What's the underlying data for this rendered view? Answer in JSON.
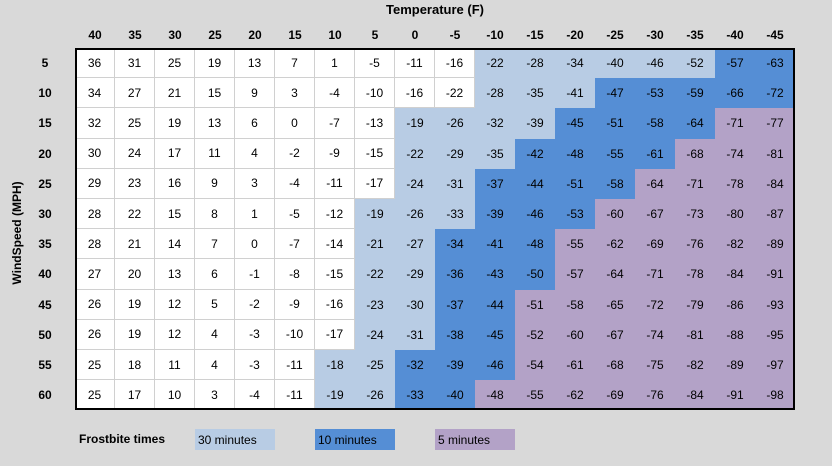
{
  "chart_data": {
    "type": "heatmap",
    "title": "Temperature (F)",
    "ylabel": "WindSpeed (MPH)",
    "columns": [
      "40",
      "35",
      "30",
      "25",
      "20",
      "15",
      "10",
      "5",
      "0",
      "-5",
      "-10",
      "-15",
      "-20",
      "-25",
      "-30",
      "-35",
      "-40",
      "-45"
    ],
    "rows": [
      "5",
      "10",
      "15",
      "20",
      "25",
      "30",
      "35",
      "40",
      "45",
      "50",
      "55",
      "60"
    ],
    "values": [
      [
        36,
        31,
        25,
        19,
        13,
        7,
        1,
        -5,
        -11,
        -16,
        -22,
        -28,
        -34,
        -40,
        -46,
        -52,
        -57,
        -63
      ],
      [
        34,
        27,
        21,
        15,
        9,
        3,
        -4,
        -10,
        -16,
        -22,
        -28,
        -35,
        -41,
        -47,
        -53,
        -59,
        -66,
        -72
      ],
      [
        32,
        25,
        19,
        13,
        6,
        0,
        -7,
        -13,
        -19,
        -26,
        -32,
        -39,
        -45,
        -51,
        -58,
        -64,
        -71,
        -77
      ],
      [
        30,
        24,
        17,
        11,
        4,
        -2,
        -9,
        -15,
        -22,
        -29,
        -35,
        -42,
        -48,
        -55,
        -61,
        -68,
        -74,
        -81
      ],
      [
        29,
        23,
        16,
        9,
        3,
        -4,
        -11,
        -17,
        -24,
        -31,
        -37,
        -44,
        -51,
        -58,
        -64,
        -71,
        -78,
        -84
      ],
      [
        28,
        22,
        15,
        8,
        1,
        -5,
        -12,
        -19,
        -26,
        -33,
        -39,
        -46,
        -53,
        -60,
        -67,
        -73,
        -80,
        -87
      ],
      [
        28,
        21,
        14,
        7,
        0,
        -7,
        -14,
        -21,
        -27,
        -34,
        -41,
        -48,
        -55,
        -62,
        -69,
        -76,
        -82,
        -89
      ],
      [
        27,
        20,
        13,
        6,
        -1,
        -8,
        -15,
        -22,
        -29,
        -36,
        -43,
        -50,
        -57,
        -64,
        -71,
        -78,
        -84,
        -91
      ],
      [
        26,
        19,
        12,
        5,
        -2,
        -9,
        -16,
        -23,
        -30,
        -37,
        -44,
        -51,
        -58,
        -65,
        -72,
        -79,
        -86,
        -93
      ],
      [
        26,
        19,
        12,
        4,
        -3,
        -10,
        -17,
        -24,
        -31,
        -38,
        -45,
        -52,
        -60,
        -67,
        -74,
        -81,
        -88,
        -95
      ],
      [
        25,
        18,
        11,
        4,
        -3,
        -11,
        -18,
        -25,
        -32,
        -39,
        -46,
        -54,
        -61,
        -68,
        -75,
        -82,
        -89,
        -97
      ],
      [
        25,
        17,
        10,
        3,
        -4,
        -11,
        -19,
        -26,
        -33,
        -40,
        -48,
        -55,
        -62,
        -69,
        -76,
        -84,
        -91,
        -98
      ]
    ],
    "categories_grid": [
      [
        0,
        0,
        0,
        0,
        0,
        0,
        0,
        0,
        0,
        0,
        1,
        1,
        1,
        1,
        1,
        1,
        2,
        2
      ],
      [
        0,
        0,
        0,
        0,
        0,
        0,
        0,
        0,
        0,
        0,
        1,
        1,
        1,
        2,
        2,
        2,
        2,
        2
      ],
      [
        0,
        0,
        0,
        0,
        0,
        0,
        0,
        0,
        1,
        1,
        1,
        1,
        2,
        2,
        2,
        2,
        3,
        3
      ],
      [
        0,
        0,
        0,
        0,
        0,
        0,
        0,
        0,
        1,
        1,
        1,
        2,
        2,
        2,
        2,
        3,
        3,
        3
      ],
      [
        0,
        0,
        0,
        0,
        0,
        0,
        0,
        0,
        1,
        1,
        2,
        2,
        2,
        2,
        3,
        3,
        3,
        3
      ],
      [
        0,
        0,
        0,
        0,
        0,
        0,
        0,
        1,
        1,
        1,
        2,
        2,
        2,
        3,
        3,
        3,
        3,
        3
      ],
      [
        0,
        0,
        0,
        0,
        0,
        0,
        0,
        1,
        1,
        2,
        2,
        2,
        3,
        3,
        3,
        3,
        3,
        3
      ],
      [
        0,
        0,
        0,
        0,
        0,
        0,
        0,
        1,
        1,
        2,
        2,
        2,
        3,
        3,
        3,
        3,
        3,
        3
      ],
      [
        0,
        0,
        0,
        0,
        0,
        0,
        0,
        1,
        1,
        2,
        2,
        3,
        3,
        3,
        3,
        3,
        3,
        3
      ],
      [
        0,
        0,
        0,
        0,
        0,
        0,
        0,
        1,
        1,
        2,
        2,
        3,
        3,
        3,
        3,
        3,
        3,
        3
      ],
      [
        0,
        0,
        0,
        0,
        0,
        0,
        1,
        1,
        2,
        2,
        2,
        3,
        3,
        3,
        3,
        3,
        3,
        3
      ],
      [
        0,
        0,
        0,
        0,
        0,
        0,
        1,
        1,
        2,
        2,
        3,
        3,
        3,
        3,
        3,
        3,
        3,
        3
      ]
    ],
    "category_colors": [
      "#ffffff",
      "#b8cce4",
      "#558ed5",
      "#b3a2c7"
    ],
    "legend": {
      "title": "Frostbite times",
      "placement": "bottom",
      "items": [
        {
          "label": "30 minutes",
          "category": 1
        },
        {
          "label": "10 minutes",
          "category": 2
        },
        {
          "label": "5 minutes",
          "category": 3
        }
      ]
    },
    "gridlines": true
  }
}
